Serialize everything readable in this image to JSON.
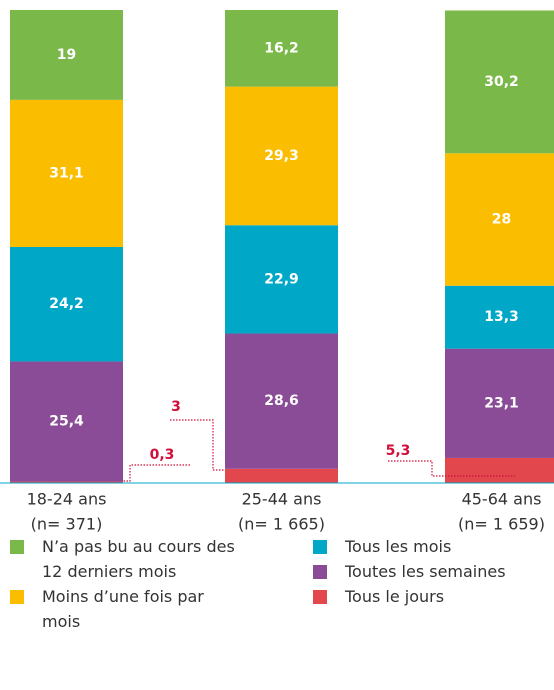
{
  "chart_data": {
    "type": "stacked_bar",
    "categories": [
      "18-24 ans",
      "25-44 ans",
      "45-64 ans"
    ],
    "sample_sizes": [
      "(n= 371)",
      "(n= 1 665)",
      "(n= 1 659)"
    ],
    "ylim": [
      0,
      100
    ],
    "series": [
      {
        "name": "Tous le jours",
        "color": "#e2474d",
        "values": [
          0.3,
          3,
          5.3
        ],
        "value_labels": [
          "0,3",
          "3",
          "5,3"
        ]
      },
      {
        "name": "Toutes les semaines",
        "color": "#8a4b97",
        "values": [
          25.4,
          28.6,
          23.1
        ],
        "value_labels": [
          "25,4",
          "28,6",
          "23,1"
        ]
      },
      {
        "name": "Tous les mois",
        "color": "#00a7c7",
        "values": [
          24.2,
          22.9,
          13.3
        ],
        "value_labels": [
          "24,2",
          "22,9",
          "13,3"
        ]
      },
      {
        "name": "Moins d’une fois par mois",
        "color": "#fbbd00",
        "values": [
          31.1,
          29.3,
          28
        ],
        "value_labels": [
          "31,1",
          "29,3",
          "28"
        ]
      },
      {
        "name": "N’a pas bu au cours des 12 derniers mois",
        "color": "#7bb84a",
        "values": [
          19,
          16.2,
          30.2
        ],
        "value_labels": [
          "19",
          "16,2",
          "30,2"
        ]
      }
    ]
  }
}
